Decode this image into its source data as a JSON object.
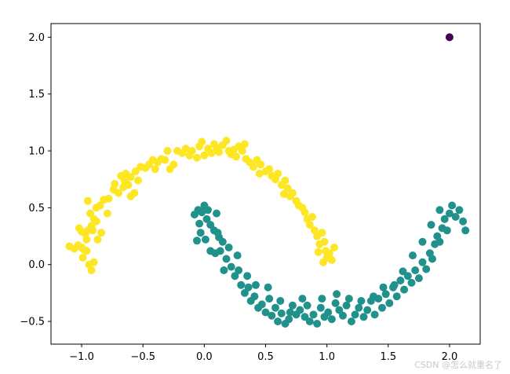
{
  "chart_data": {
    "type": "scatter",
    "title": "",
    "xlabel": "",
    "ylabel": "",
    "xlim": [
      -1.25,
      2.25
    ],
    "ylim": [
      -0.7,
      2.12
    ],
    "grid": false,
    "xticks": [
      -1.0,
      -0.5,
      0.0,
      0.5,
      1.0,
      1.5,
      2.0
    ],
    "xtick_labels": [
      "−1.0",
      "−0.5",
      "0.0",
      "0.5",
      "1.0",
      "1.5",
      "2.0"
    ],
    "yticks": [
      -0.5,
      0.0,
      0.5,
      1.0,
      1.5,
      2.0
    ],
    "ytick_labels": [
      "−0.5",
      "0.0",
      "0.5",
      "1.0",
      "1.5",
      "2.0"
    ],
    "colors": {
      "class_0": "#fde725",
      "class_1": "#21918c",
      "outlier": "#440154"
    },
    "series": [
      {
        "color": "#fde725",
        "points": [
          [
            -1.1,
            0.16
          ],
          [
            -1.06,
            0.14
          ],
          [
            -1.03,
            0.17
          ],
          [
            -1.0,
            0.15
          ],
          [
            -0.98,
            0.13
          ],
          [
            -0.96,
            0.12
          ],
          [
            -1.02,
            0.32
          ],
          [
            -1.0,
            0.29
          ],
          [
            -0.97,
            0.27
          ],
          [
            -0.95,
            0.3
          ],
          [
            -0.92,
            0.34
          ],
          [
            -0.9,
            0.4
          ],
          [
            -0.93,
            0.45
          ],
          [
            -0.88,
            0.38
          ],
          [
            -0.91,
            0.3
          ],
          [
            -0.96,
            0.22
          ],
          [
            -0.99,
            0.06
          ],
          [
            -0.94,
            0.0
          ],
          [
            -0.92,
            -0.05
          ],
          [
            -0.9,
            0.02
          ],
          [
            -0.95,
            0.56
          ],
          [
            -0.88,
            0.5
          ],
          [
            -0.85,
            0.52
          ],
          [
            -0.82,
            0.57
          ],
          [
            -0.78,
            0.58
          ],
          [
            -0.74,
            0.66
          ],
          [
            -0.7,
            0.63
          ],
          [
            -0.66,
            0.68
          ],
          [
            -0.62,
            0.7
          ],
          [
            -0.6,
            0.6
          ],
          [
            -0.57,
            0.63
          ],
          [
            -0.65,
            0.74
          ],
          [
            -0.68,
            0.78
          ],
          [
            -0.64,
            0.8
          ],
          [
            -0.6,
            0.77
          ],
          [
            -0.56,
            0.82
          ],
          [
            -0.52,
            0.86
          ],
          [
            -0.48,
            0.85
          ],
          [
            -0.45,
            0.88
          ],
          [
            -0.42,
            0.92
          ],
          [
            -0.38,
            0.9
          ],
          [
            -0.35,
            0.93
          ],
          [
            -0.32,
            0.92
          ],
          [
            -0.28,
            0.84
          ],
          [
            -0.25,
            0.88
          ],
          [
            -0.22,
            1.0
          ],
          [
            -0.18,
            0.98
          ],
          [
            -0.15,
            1.02
          ],
          [
            -0.12,
            0.96
          ],
          [
            -0.1,
            1.0
          ],
          [
            -0.06,
            0.94
          ],
          [
            -0.04,
            1.04
          ],
          [
            -0.02,
            1.08
          ],
          [
            0.0,
            0.96
          ],
          [
            0.03,
            1.02
          ],
          [
            0.06,
            0.98
          ],
          [
            0.08,
            1.06
          ],
          [
            0.1,
            1.03
          ],
          [
            0.12,
            0.99
          ],
          [
            0.15,
            1.05
          ],
          [
            0.18,
            1.09
          ],
          [
            0.2,
            1.0
          ],
          [
            0.22,
            0.97
          ],
          [
            0.24,
            1.01
          ],
          [
            0.26,
            0.95
          ],
          [
            0.28,
            1.04
          ],
          [
            0.31,
            1.0
          ],
          [
            0.34,
            0.93
          ],
          [
            0.37,
            0.9
          ],
          [
            0.4,
            0.86
          ],
          [
            0.43,
            0.92
          ],
          [
            0.46,
            0.88
          ],
          [
            0.5,
            0.82
          ],
          [
            0.53,
            0.84
          ],
          [
            0.55,
            0.78
          ],
          [
            0.58,
            0.75
          ],
          [
            0.6,
            0.8
          ],
          [
            0.63,
            0.7
          ],
          [
            0.66,
            0.74
          ],
          [
            0.68,
            0.67
          ],
          [
            0.7,
            0.6
          ],
          [
            0.72,
            0.63
          ],
          [
            0.75,
            0.56
          ],
          [
            0.77,
            0.52
          ],
          [
            0.8,
            0.5
          ],
          [
            0.82,
            0.46
          ],
          [
            0.84,
            0.4
          ],
          [
            0.86,
            0.35
          ],
          [
            0.88,
            0.42
          ],
          [
            0.9,
            0.3
          ],
          [
            0.92,
            0.25
          ],
          [
            0.94,
            0.18
          ],
          [
            0.96,
            0.28
          ],
          [
            0.98,
            0.2
          ],
          [
            0.99,
            0.12
          ],
          [
            1.0,
            0.06
          ],
          [
            1.02,
            0.1
          ],
          [
            1.04,
            0.04
          ],
          [
            1.06,
            0.15
          ],
          [
            0.97,
            0.02
          ],
          [
            0.93,
            0.11
          ],
          [
            -0.87,
            0.22
          ],
          [
            -0.84,
            0.28
          ],
          [
            -0.79,
            0.45
          ],
          [
            -0.73,
            0.71
          ],
          [
            -0.54,
            0.74
          ],
          [
            -0.4,
            0.84
          ],
          [
            -0.3,
            1.0
          ],
          [
            0.33,
            1.06
          ],
          [
            0.45,
            0.8
          ],
          [
            0.65,
            0.62
          ]
        ]
      },
      {
        "color": "#21918c",
        "points": [
          [
            -0.08,
            0.44
          ],
          [
            -0.05,
            0.48
          ],
          [
            -0.02,
            0.46
          ],
          [
            0.0,
            0.52
          ],
          [
            0.02,
            0.4
          ],
          [
            0.05,
            0.35
          ],
          [
            0.08,
            0.3
          ],
          [
            0.1,
            0.45
          ],
          [
            0.12,
            0.24
          ],
          [
            0.15,
            0.2
          ],
          [
            0.13,
            0.12
          ],
          [
            0.09,
            0.1
          ],
          [
            0.05,
            0.12
          ],
          [
            0.01,
            0.22
          ],
          [
            -0.06,
            0.21
          ],
          [
            -0.03,
            0.28
          ],
          [
            0.18,
            0.05
          ],
          [
            0.2,
            0.15
          ],
          [
            0.22,
            -0.02
          ],
          [
            0.25,
            -0.1
          ],
          [
            0.28,
            -0.05
          ],
          [
            0.3,
            -0.18
          ],
          [
            0.33,
            -0.25
          ],
          [
            0.36,
            -0.2
          ],
          [
            0.38,
            -0.32
          ],
          [
            0.41,
            -0.28
          ],
          [
            0.44,
            -0.38
          ],
          [
            0.47,
            -0.35
          ],
          [
            0.5,
            -0.42
          ],
          [
            0.53,
            -0.3
          ],
          [
            0.55,
            -0.45
          ],
          [
            0.58,
            -0.38
          ],
          [
            0.6,
            -0.5
          ],
          [
            0.63,
            -0.43
          ],
          [
            0.66,
            -0.52
          ],
          [
            0.69,
            -0.48
          ],
          [
            0.72,
            -0.36
          ],
          [
            0.75,
            -0.44
          ],
          [
            0.78,
            -0.4
          ],
          [
            0.8,
            -0.3
          ],
          [
            0.82,
            -0.46
          ],
          [
            0.86,
            -0.5
          ],
          [
            0.89,
            -0.44
          ],
          [
            0.92,
            -0.52
          ],
          [
            0.95,
            -0.38
          ],
          [
            0.98,
            -0.46
          ],
          [
            1.01,
            -0.42
          ],
          [
            1.04,
            -0.48
          ],
          [
            1.07,
            -0.34
          ],
          [
            1.1,
            -0.4
          ],
          [
            1.13,
            -0.45
          ],
          [
            1.16,
            -0.36
          ],
          [
            1.2,
            -0.5
          ],
          [
            1.23,
            -0.44
          ],
          [
            1.26,
            -0.38
          ],
          [
            1.3,
            -0.46
          ],
          [
            1.33,
            -0.4
          ],
          [
            1.36,
            -0.32
          ],
          [
            1.39,
            -0.44
          ],
          [
            1.42,
            -0.3
          ],
          [
            1.45,
            -0.38
          ],
          [
            1.48,
            -0.26
          ],
          [
            1.51,
            -0.34
          ],
          [
            1.54,
            -0.2
          ],
          [
            1.57,
            -0.28
          ],
          [
            1.6,
            -0.14
          ],
          [
            1.63,
            -0.22
          ],
          [
            1.66,
            -0.1
          ],
          [
            1.69,
            -0.16
          ],
          [
            1.72,
            -0.05
          ],
          [
            1.75,
            -0.12
          ],
          [
            1.78,
            0.02
          ],
          [
            1.81,
            -0.04
          ],
          [
            1.84,
            0.1
          ],
          [
            1.86,
            0.05
          ],
          [
            1.88,
            0.18
          ],
          [
            1.9,
            0.25
          ],
          [
            1.92,
            0.2
          ],
          [
            1.94,
            0.32
          ],
          [
            1.96,
            0.4
          ],
          [
            1.98,
            0.3
          ],
          [
            2.0,
            0.45
          ],
          [
            2.02,
            0.52
          ],
          [
            2.05,
            0.42
          ],
          [
            2.08,
            0.48
          ],
          [
            2.11,
            0.38
          ],
          [
            2.13,
            0.3
          ],
          [
            1.92,
            0.48
          ],
          [
            1.85,
            0.35
          ],
          [
            1.78,
            0.2
          ],
          [
            1.7,
            0.08
          ],
          [
            1.62,
            -0.06
          ],
          [
            1.55,
            -0.18
          ],
          [
            1.46,
            -0.2
          ],
          [
            1.38,
            -0.28
          ],
          [
            1.28,
            -0.32
          ],
          [
            1.18,
            -0.3
          ],
          [
            1.08,
            -0.26
          ],
          [
            0.96,
            -0.3
          ],
          [
            0.84,
            -0.36
          ],
          [
            0.7,
            -0.42
          ],
          [
            0.62,
            -0.32
          ],
          [
            0.52,
            -0.2
          ],
          [
            0.42,
            -0.18
          ],
          [
            0.35,
            -0.1
          ],
          [
            0.27,
            0.08
          ],
          [
            0.16,
            -0.05
          ],
          [
            0.11,
            0.28
          ],
          [
            -0.04,
            0.36
          ],
          [
            0.03,
            0.48
          ]
        ]
      },
      {
        "color": "#440154",
        "points": [
          [
            2.0,
            2.0
          ]
        ]
      }
    ]
  },
  "watermark": "CSDN @怎么就重名了"
}
